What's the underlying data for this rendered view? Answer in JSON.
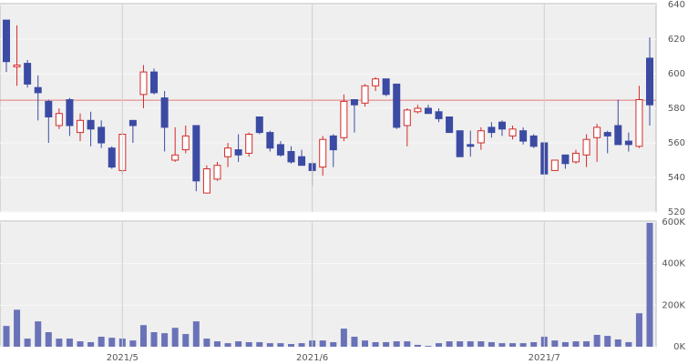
{
  "chart_data": [
    {
      "type": "candlestick",
      "open": [
        631,
        604,
        606,
        592,
        584,
        570,
        585,
        566,
        573,
        569,
        557,
        544,
        573,
        588,
        601,
        586,
        550,
        556,
        570,
        531,
        539,
        552,
        556,
        554,
        575,
        566,
        559,
        555,
        552,
        548,
        546,
        564,
        563,
        585,
        583,
        593,
        597,
        594,
        570,
        578,
        580,
        578,
        575,
        567,
        559,
        560,
        569,
        572,
        564,
        567,
        564,
        560,
        544,
        553,
        549,
        553,
        563,
        566,
        570,
        561,
        558,
        609
      ],
      "high": [
        631,
        628,
        608,
        599,
        585,
        580,
        586,
        577,
        578,
        573,
        558,
        566,
        573,
        605,
        603,
        590,
        569,
        570,
        570,
        547,
        549,
        560,
        565,
        566,
        575,
        567,
        561,
        558,
        556,
        549,
        564,
        565,
        588,
        585,
        594,
        598,
        597,
        594,
        580,
        582,
        582,
        580,
        575,
        567,
        567,
        569,
        572,
        573,
        570,
        569,
        565,
        560,
        550,
        553,
        556,
        565,
        571,
        567,
        585,
        566,
        593,
        621
      ],
      "low": [
        601,
        593,
        592,
        573,
        560,
        568,
        564,
        561,
        558,
        557,
        545,
        542,
        560,
        580,
        588,
        555,
        549,
        554,
        532,
        531,
        538,
        546,
        549,
        552,
        565,
        555,
        552,
        548,
        547,
        535,
        541,
        546,
        561,
        566,
        581,
        590,
        587,
        568,
        558,
        577,
        577,
        572,
        566,
        552,
        552,
        556,
        563,
        564,
        562,
        559,
        557,
        542,
        544,
        545,
        548,
        546,
        549,
        554,
        559,
        555,
        557,
        570
      ],
      "close": [
        607,
        605,
        594,
        589,
        575,
        577,
        570,
        573,
        568,
        560,
        546,
        565,
        570,
        601,
        589,
        569,
        553,
        564,
        538,
        545,
        547,
        557,
        553,
        565,
        566,
        557,
        553,
        549,
        547,
        544,
        562,
        556,
        584,
        582,
        593,
        597,
        588,
        569,
        579,
        580,
        577,
        574,
        566,
        552,
        558,
        567,
        566,
        568,
        568,
        561,
        558,
        542,
        550,
        548,
        554,
        562,
        569,
        564,
        559,
        559,
        585,
        582
      ],
      "up_color": "#d42a2a",
      "down_color": "#3b4aa3",
      "reference_line": 584.7,
      "reference_color": "#e07a7a",
      "ylim": [
        520,
        640
      ],
      "yticks": [
        520,
        540,
        560,
        580,
        600,
        620,
        640
      ],
      "grid": true
    },
    {
      "type": "bar",
      "x": [
        null,
        null,
        null,
        null,
        null,
        null,
        null,
        null,
        null,
        null,
        null,
        "2021/5",
        null,
        null,
        null,
        null,
        null,
        null,
        null,
        null,
        null,
        null,
        null,
        null,
        null,
        null,
        null,
        null,
        null,
        "2021/6",
        null,
        null,
        null,
        null,
        null,
        null,
        null,
        null,
        null,
        null,
        null,
        null,
        null,
        null,
        null,
        null,
        null,
        null,
        null,
        null,
        null,
        "2021/7",
        null,
        null,
        null,
        null,
        null,
        null,
        null,
        null,
        null,
        null
      ],
      "values": [
        100000,
        178000,
        39000,
        122000,
        70000,
        39000,
        39000,
        26000,
        22000,
        48000,
        43000,
        39000,
        30000,
        104000,
        70000,
        65000,
        91000,
        61000,
        122000,
        39000,
        26000,
        17000,
        26000,
        22000,
        22000,
        17000,
        17000,
        13000,
        17000,
        30000,
        30000,
        22000,
        87000,
        48000,
        30000,
        22000,
        22000,
        26000,
        26000,
        9000,
        4000,
        17000,
        26000,
        26000,
        26000,
        26000,
        22000,
        17000,
        17000,
        17000,
        22000,
        48000,
        30000,
        22000,
        26000,
        26000,
        57000,
        52000,
        35000,
        22000,
        161000,
        596000
      ],
      "color": "#6a72b8",
      "ylim": [
        0,
        600000
      ],
      "yticks": [
        {
          "value": 0,
          "label": "0K"
        },
        {
          "value": 200000,
          "label": "200K"
        },
        {
          "value": 400000,
          "label": "400K"
        },
        {
          "value": 600000,
          "label": "600K"
        }
      ],
      "grid": true
    }
  ]
}
